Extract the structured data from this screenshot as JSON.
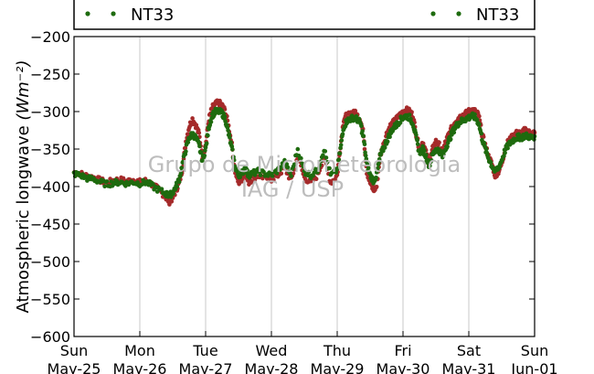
{
  "colors": {
    "series_red": "#a52a2a",
    "series_green": "#1e6b0e",
    "grid": "#c8c8c8",
    "watermark": "#bdbdbd"
  },
  "legend": {
    "left_label": "NT33",
    "right_label": "NT33"
  },
  "watermark": {
    "line1": "Grupo de Micrometeorologia",
    "line2": "IAG / USP"
  },
  "chart_data": {
    "type": "scatter",
    "xlabel": "",
    "ylabel": "Atmospheric longwave",
    "ylabel_unit": "(Wm⁻²)",
    "ylim": [
      -600,
      -200
    ],
    "yticks": [
      -600,
      -550,
      -500,
      -450,
      -400,
      -350,
      -300,
      -250,
      -200
    ],
    "ytick_labels": [
      "−600",
      "−550",
      "−500",
      "−450",
      "−400",
      "−350",
      "−300",
      "−250",
      "−200"
    ],
    "xlim": [
      "2015-05-25",
      "2015-06-01"
    ],
    "x_unit": "day index from Sun May-25",
    "xtick_labels": [
      {
        "day": "Sun",
        "date": "May-25"
      },
      {
        "day": "Mon",
        "date": "May-26"
      },
      {
        "day": "Tue",
        "date": "May-27"
      },
      {
        "day": "Wed",
        "date": "May-28"
      },
      {
        "day": "Thu",
        "date": "May-29"
      },
      {
        "day": "Fri",
        "date": "May-30"
      },
      {
        "day": "Sat",
        "date": "May-31"
      },
      {
        "day": "Sun",
        "date": "Jun-01"
      }
    ],
    "grid": "vertical",
    "legend_placement": "top",
    "series": [
      {
        "name": "NT33",
        "color": "#a52a2a",
        "points": [
          [
            0.0,
            -381
          ],
          [
            0.1,
            -383
          ],
          [
            0.2,
            -386
          ],
          [
            0.3,
            -388
          ],
          [
            0.4,
            -392
          ],
          [
            0.5,
            -395
          ],
          [
            0.6,
            -392
          ],
          [
            0.7,
            -391
          ],
          [
            0.8,
            -393
          ],
          [
            0.9,
            -391
          ],
          [
            1.0,
            -394
          ],
          [
            1.1,
            -392
          ],
          [
            1.2,
            -398
          ],
          [
            1.3,
            -405
          ],
          [
            1.4,
            -415
          ],
          [
            1.45,
            -420
          ],
          [
            1.5,
            -415
          ],
          [
            1.55,
            -405
          ],
          [
            1.6,
            -395
          ],
          [
            1.65,
            -375
          ],
          [
            1.7,
            -340
          ],
          [
            1.75,
            -320
          ],
          [
            1.8,
            -310
          ],
          [
            1.85,
            -318
          ],
          [
            1.9,
            -330
          ],
          [
            1.95,
            -360
          ],
          [
            2.0,
            -345
          ],
          [
            2.05,
            -310
          ],
          [
            2.1,
            -295
          ],
          [
            2.15,
            -290
          ],
          [
            2.2,
            -288
          ],
          [
            2.25,
            -292
          ],
          [
            2.3,
            -300
          ],
          [
            2.35,
            -320
          ],
          [
            2.4,
            -345
          ],
          [
            2.45,
            -380
          ],
          [
            2.5,
            -395
          ],
          [
            2.55,
            -390
          ],
          [
            2.6,
            -380
          ],
          [
            2.65,
            -395
          ],
          [
            2.7,
            -390
          ],
          [
            2.8,
            -385
          ],
          [
            2.9,
            -388
          ],
          [
            3.0,
            -390
          ],
          [
            3.1,
            -385
          ],
          [
            3.2,
            -375
          ],
          [
            3.3,
            -392
          ],
          [
            3.4,
            -360
          ],
          [
            3.5,
            -388
          ],
          [
            3.6,
            -395
          ],
          [
            3.7,
            -385
          ],
          [
            3.8,
            -360
          ],
          [
            3.9,
            -395
          ],
          [
            4.0,
            -385
          ],
          [
            4.05,
            -345
          ],
          [
            4.1,
            -310
          ],
          [
            4.15,
            -305
          ],
          [
            4.2,
            -305
          ],
          [
            4.25,
            -300
          ],
          [
            4.3,
            -305
          ],
          [
            4.35,
            -310
          ],
          [
            4.4,
            -330
          ],
          [
            4.45,
            -380
          ],
          [
            4.5,
            -395
          ],
          [
            4.55,
            -405
          ],
          [
            4.6,
            -400
          ],
          [
            4.65,
            -360
          ],
          [
            4.7,
            -345
          ],
          [
            4.75,
            -330
          ],
          [
            4.8,
            -320
          ],
          [
            4.85,
            -315
          ],
          [
            4.9,
            -310
          ],
          [
            4.95,
            -305
          ],
          [
            5.0,
            -300
          ],
          [
            5.05,
            -298
          ],
          [
            5.1,
            -300
          ],
          [
            5.15,
            -305
          ],
          [
            5.2,
            -330
          ],
          [
            5.25,
            -350
          ],
          [
            5.3,
            -340
          ],
          [
            5.35,
            -355
          ],
          [
            5.4,
            -370
          ],
          [
            5.45,
            -350
          ],
          [
            5.5,
            -340
          ],
          [
            5.55,
            -345
          ],
          [
            5.6,
            -355
          ],
          [
            5.65,
            -340
          ],
          [
            5.7,
            -330
          ],
          [
            5.75,
            -320
          ],
          [
            5.8,
            -312
          ],
          [
            5.85,
            -308
          ],
          [
            5.9,
            -305
          ],
          [
            5.95,
            -303
          ],
          [
            6.0,
            -300
          ],
          [
            6.05,
            -298
          ],
          [
            6.1,
            -300
          ],
          [
            6.15,
            -305
          ],
          [
            6.2,
            -330
          ],
          [
            6.25,
            -345
          ],
          [
            6.3,
            -360
          ],
          [
            6.35,
            -370
          ],
          [
            6.4,
            -385
          ],
          [
            6.45,
            -380
          ],
          [
            6.5,
            -370
          ],
          [
            6.55,
            -350
          ],
          [
            6.6,
            -340
          ],
          [
            6.65,
            -335
          ],
          [
            6.7,
            -330
          ],
          [
            6.75,
            -328
          ],
          [
            6.8,
            -330
          ],
          [
            6.85,
            -325
          ],
          [
            6.9,
            -327
          ],
          [
            6.95,
            -330
          ],
          [
            7.0,
            -328
          ]
        ]
      },
      {
        "name": "NT33",
        "color": "#1e6b0e",
        "points": [
          [
            0.0,
            -383
          ],
          [
            0.1,
            -385
          ],
          [
            0.2,
            -389
          ],
          [
            0.3,
            -390
          ],
          [
            0.4,
            -394
          ],
          [
            0.5,
            -397
          ],
          [
            0.6,
            -395
          ],
          [
            0.7,
            -394
          ],
          [
            0.8,
            -396
          ],
          [
            0.9,
            -394
          ],
          [
            1.0,
            -396
          ],
          [
            1.1,
            -394
          ],
          [
            1.2,
            -400
          ],
          [
            1.3,
            -405
          ],
          [
            1.4,
            -410
          ],
          [
            1.45,
            -412
          ],
          [
            1.5,
            -408
          ],
          [
            1.55,
            -400
          ],
          [
            1.6,
            -390
          ],
          [
            1.65,
            -370
          ],
          [
            1.7,
            -350
          ],
          [
            1.75,
            -335
          ],
          [
            1.8,
            -330
          ],
          [
            1.85,
            -335
          ],
          [
            1.9,
            -345
          ],
          [
            1.95,
            -365
          ],
          [
            2.0,
            -350
          ],
          [
            2.05,
            -320
          ],
          [
            2.1,
            -305
          ],
          [
            2.15,
            -300
          ],
          [
            2.2,
            -300
          ],
          [
            2.25,
            -302
          ],
          [
            2.3,
            -310
          ],
          [
            2.35,
            -330
          ],
          [
            2.4,
            -350
          ],
          [
            2.45,
            -375
          ],
          [
            2.5,
            -385
          ],
          [
            2.55,
            -382
          ],
          [
            2.6,
            -375
          ],
          [
            2.65,
            -385
          ],
          [
            2.7,
            -383
          ],
          [
            2.8,
            -380
          ],
          [
            2.9,
            -383
          ],
          [
            3.0,
            -385
          ],
          [
            3.1,
            -378
          ],
          [
            3.2,
            -368
          ],
          [
            3.3,
            -385
          ],
          [
            3.4,
            -350
          ],
          [
            3.5,
            -380
          ],
          [
            3.6,
            -385
          ],
          [
            3.7,
            -378
          ],
          [
            3.8,
            -350
          ],
          [
            3.9,
            -385
          ],
          [
            4.0,
            -378
          ],
          [
            4.05,
            -350
          ],
          [
            4.1,
            -320
          ],
          [
            4.15,
            -312
          ],
          [
            4.2,
            -310
          ],
          [
            4.25,
            -308
          ],
          [
            4.3,
            -310
          ],
          [
            4.35,
            -315
          ],
          [
            4.4,
            -335
          ],
          [
            4.45,
            -370
          ],
          [
            4.5,
            -385
          ],
          [
            4.55,
            -392
          ],
          [
            4.6,
            -385
          ],
          [
            4.65,
            -360
          ],
          [
            4.7,
            -350
          ],
          [
            4.75,
            -340
          ],
          [
            4.8,
            -330
          ],
          [
            4.85,
            -322
          ],
          [
            4.9,
            -318
          ],
          [
            4.95,
            -312
          ],
          [
            5.0,
            -308
          ],
          [
            5.05,
            -306
          ],
          [
            5.1,
            -308
          ],
          [
            5.15,
            -315
          ],
          [
            5.2,
            -335
          ],
          [
            5.25,
            -355
          ],
          [
            5.3,
            -350
          ],
          [
            5.35,
            -360
          ],
          [
            5.4,
            -372
          ],
          [
            5.45,
            -358
          ],
          [
            5.5,
            -350
          ],
          [
            5.55,
            -352
          ],
          [
            5.6,
            -360
          ],
          [
            5.65,
            -348
          ],
          [
            5.7,
            -338
          ],
          [
            5.75,
            -328
          ],
          [
            5.8,
            -320
          ],
          [
            5.85,
            -315
          ],
          [
            5.9,
            -312
          ],
          [
            5.95,
            -310
          ],
          [
            6.0,
            -308
          ],
          [
            6.05,
            -306
          ],
          [
            6.1,
            -308
          ],
          [
            6.15,
            -315
          ],
          [
            6.2,
            -335
          ],
          [
            6.25,
            -350
          ],
          [
            6.3,
            -362
          ],
          [
            6.35,
            -372
          ],
          [
            6.4,
            -380
          ],
          [
            6.45,
            -375
          ],
          [
            6.5,
            -365
          ],
          [
            6.55,
            -352
          ],
          [
            6.6,
            -345
          ],
          [
            6.65,
            -340
          ],
          [
            6.7,
            -336
          ],
          [
            6.75,
            -334
          ],
          [
            6.8,
            -335
          ],
          [
            6.85,
            -332
          ],
          [
            6.9,
            -333
          ],
          [
            6.95,
            -335
          ],
          [
            7.0,
            -333
          ]
        ]
      }
    ]
  }
}
